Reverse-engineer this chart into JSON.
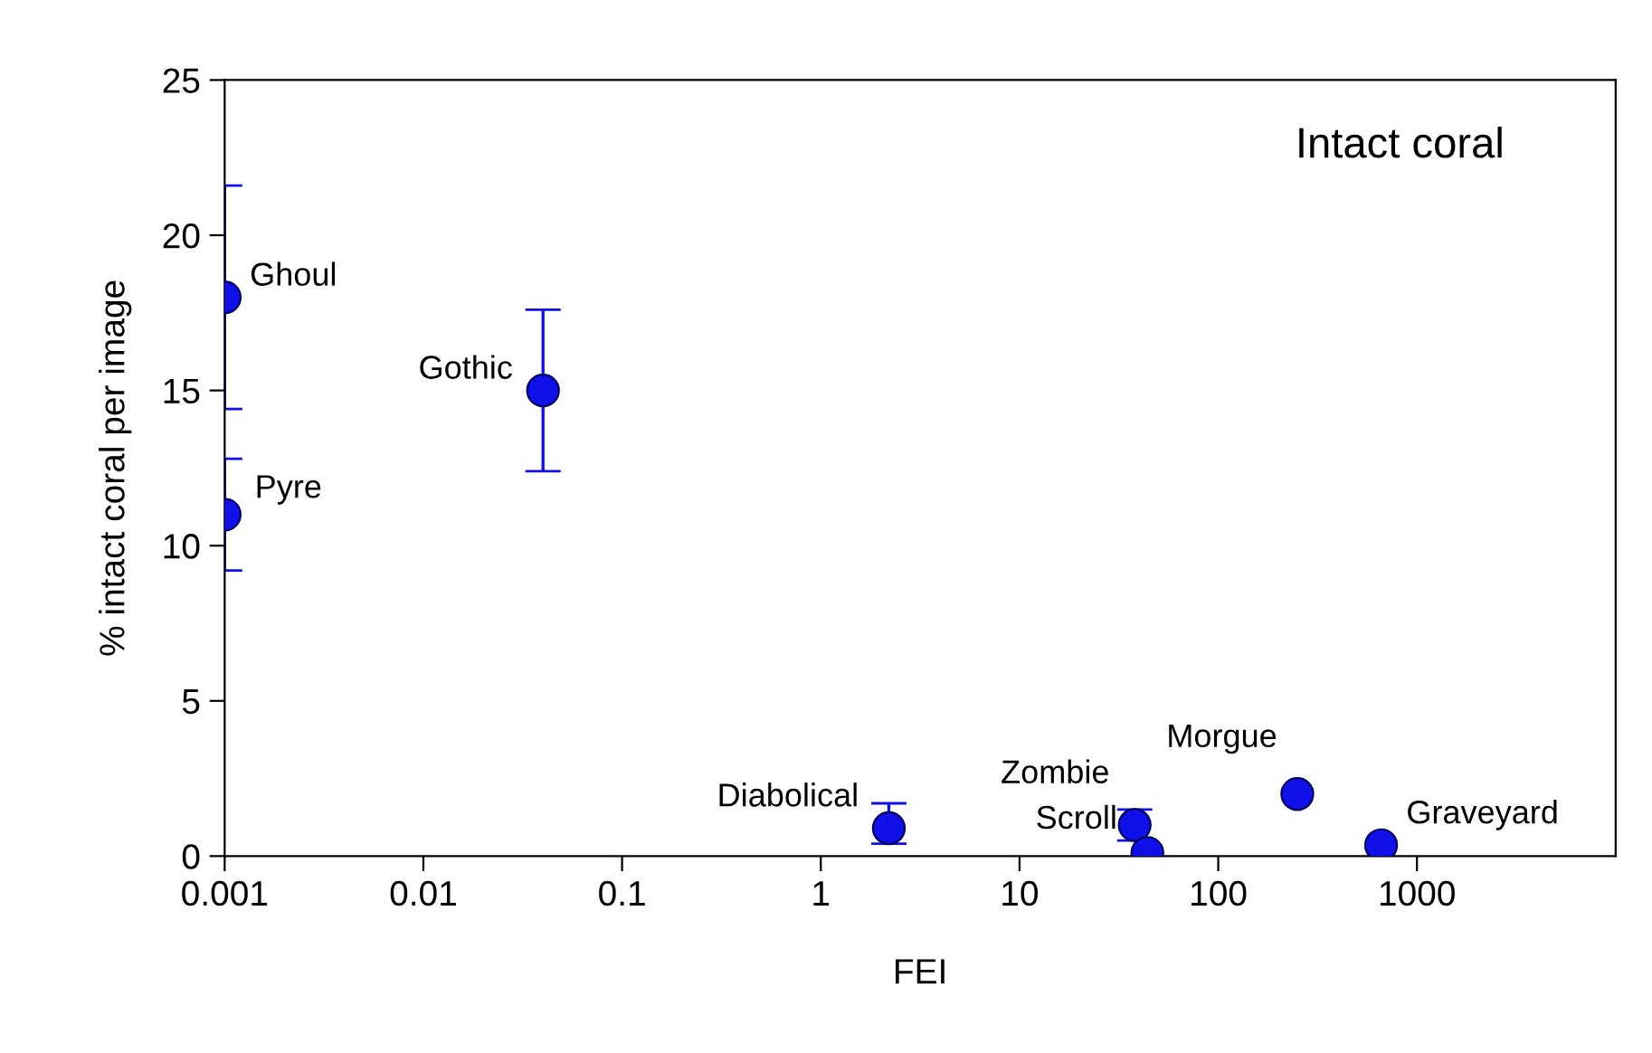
{
  "chart_data": {
    "type": "scatter",
    "title": "Intact coral",
    "xlabel": "FEI",
    "ylabel": "% intact coral per image",
    "log": "x",
    "xlim": [
      0.001,
      10000
    ],
    "xticks": [
      0.001,
      0.01,
      0.1,
      1,
      10,
      100,
      1000
    ],
    "ylim": [
      0,
      25
    ],
    "yticks": [
      0,
      5,
      10,
      15,
      20,
      25
    ],
    "grid": false,
    "legend": false,
    "marker": "circle",
    "series": [
      {
        "color": "#1010e8",
        "x": [
          0.001,
          0.001,
          0.04,
          2.2,
          38,
          44,
          250,
          660
        ],
        "values": [
          18,
          11,
          15,
          0.9,
          1.0,
          0.1,
          2.0,
          0.35
        ],
        "errors": [
          3.6,
          1.8,
          2.6,
          [
            0.4,
            1.7
          ],
          [
            0.5,
            1.5
          ],
          null,
          null,
          null
        ]
      }
    ],
    "annotations": [
      {
        "text": "Ghoul",
        "x": 0.001,
        "y": 18
      },
      {
        "text": "Pyre",
        "x": 0.001,
        "y": 11
      },
      {
        "text": "Gothic",
        "x": 0.04,
        "y": 15
      },
      {
        "text": "Diabolical",
        "x": 2.2,
        "y": 0.9
      },
      {
        "text": "Zombie",
        "x": 38,
        "y": 1.0
      },
      {
        "text": "Scroll",
        "x": 44,
        "y": 0.1
      },
      {
        "text": "Morgue",
        "x": 250,
        "y": 2.0
      },
      {
        "text": "Graveyard",
        "x": 660,
        "y": 0.35
      }
    ]
  }
}
